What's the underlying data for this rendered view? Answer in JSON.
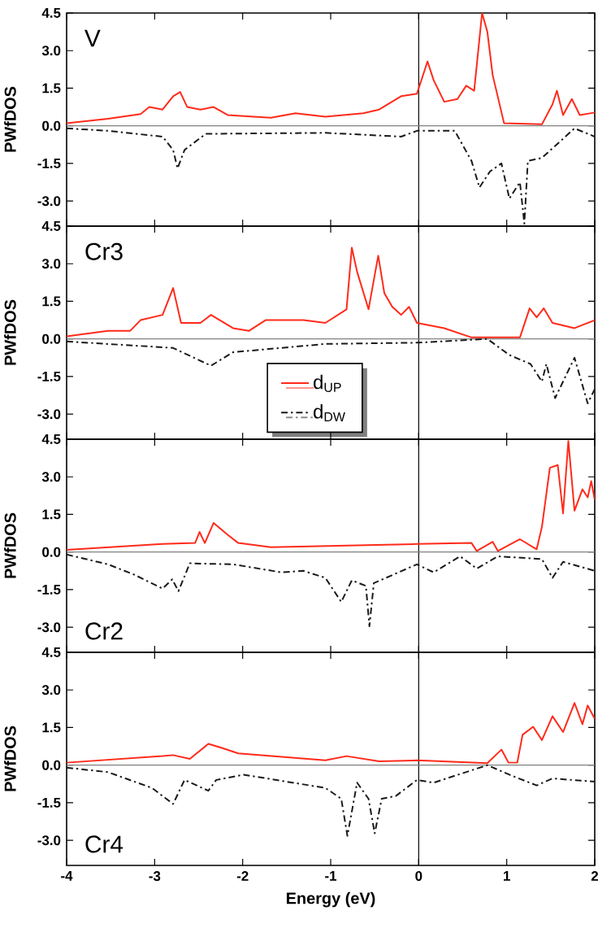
{
  "chart_data": [
    {
      "type": "line",
      "ylabel": "PWfDOS",
      "annotations": [
        "V"
      ],
      "xlim": [
        -4,
        2
      ],
      "ylim": [
        -4,
        4.5
      ],
      "xticks": [
        -4,
        -3,
        -2,
        -1,
        0,
        1,
        2
      ],
      "yticks": [
        {
          "value": -3,
          "label": "-3.0"
        },
        -1.5,
        {
          "value": 0,
          "label": "0.0"
        },
        1.5,
        {
          "value": 3,
          "label": "3.0"
        },
        4.5
      ],
      "tick_labels": "y",
      "ref_lines": [
        {
          "axis": "x",
          "value": 0,
          "color": "#000000"
        },
        {
          "axis": "y",
          "value": 0,
          "color": "#808080"
        }
      ],
      "series": [
        {
          "color": "#ff2a1a",
          "line_style": "solid",
          "x": [
            -4,
            -3.53,
            -3.16,
            -3.06,
            -2.91,
            -2.79,
            -2.71,
            -2.63,
            -2.48,
            -2.33,
            -2.17,
            -1.68,
            -1.4,
            -1.06,
            -0.63,
            -0.45,
            -0.2,
            -0.02,
            0.1,
            0.17,
            0.29,
            0.44,
            0.54,
            0.63,
            0.72,
            0.78,
            0.84,
            0.97,
            1.4,
            1.52,
            1.57,
            1.64,
            1.74,
            1.83,
            2
          ],
          "values": [
            0.1,
            0.28,
            0.47,
            0.75,
            0.65,
            1.18,
            1.35,
            0.75,
            0.65,
            0.75,
            0.43,
            0.32,
            0.5,
            0.36,
            0.5,
            0.65,
            1.18,
            1.28,
            2.57,
            1.82,
            0.96,
            1.07,
            1.6,
            1.4,
            4.5,
            3.75,
            2.03,
            0.1,
            0.06,
            0.86,
            1.4,
            0.43,
            1.07,
            0.43,
            0.53
          ]
        },
        {
          "color": "#1a1a1a",
          "line_style": "dashdot",
          "x": [
            -4,
            -3.53,
            -2.91,
            -2.79,
            -2.74,
            -2.66,
            -2.42,
            -1.06,
            -0.2,
            -0.02,
            0.41,
            0.6,
            0.69,
            0.81,
            0.94,
            1.03,
            1.15,
            1.2,
            1.24,
            1.4,
            1.77,
            2
          ],
          "values": [
            -0.1,
            -0.2,
            -0.43,
            -0.96,
            -1.7,
            -0.96,
            -0.32,
            -0.28,
            -0.43,
            -0.2,
            -0.2,
            -1.4,
            -2.46,
            -1.82,
            -1.5,
            -2.9,
            -2.25,
            -3.9,
            -1.4,
            -1.28,
            -0.1,
            -0.43
          ]
        }
      ]
    },
    {
      "type": "line",
      "ylabel": "PWfDOS",
      "annotations": [
        "Cr3"
      ],
      "xlim": [
        -4,
        2
      ],
      "ylim": [
        -4,
        4.5
      ],
      "xticks": [
        -4,
        -3,
        -2,
        -1,
        0,
        1,
        2
      ],
      "yticks": [
        {
          "value": -3,
          "label": "-3.0"
        },
        -1.5,
        {
          "value": 0,
          "label": "0.0"
        },
        1.5,
        {
          "value": 3,
          "label": "3.0"
        },
        4.5
      ],
      "tick_labels": "y",
      "legend": "bottom",
      "ref_lines": [
        {
          "axis": "x",
          "value": 0,
          "color": "#000000"
        },
        {
          "axis": "y",
          "value": 0,
          "color": "#808080"
        }
      ],
      "series": [
        {
          "name": "d$_{UP}$",
          "color": "#ff2a1a",
          "line_style": "solid",
          "x": [
            -4,
            -3.53,
            -3.28,
            -3.16,
            -2.91,
            -2.79,
            -2.7,
            -2.48,
            -2.36,
            -2.11,
            -1.93,
            -1.74,
            -1.31,
            -1.06,
            -0.82,
            -0.76,
            -0.7,
            -0.57,
            -0.46,
            -0.39,
            -0.3,
            -0.2,
            -0.11,
            -0.02,
            0.29,
            0.6,
            1.15,
            1.26,
            1.34,
            1.42,
            1.52,
            1.77,
            2
          ],
          "values": [
            0.1,
            0.32,
            0.32,
            0.75,
            0.96,
            2.03,
            0.64,
            0.64,
            0.96,
            0.43,
            0.32,
            0.75,
            0.75,
            0.64,
            1.18,
            3.64,
            2.68,
            1.18,
            3.32,
            1.82,
            1.28,
            0.96,
            1.28,
            0.64,
            0.43,
            0.06,
            0.06,
            1.22,
            0.86,
            1.22,
            0.64,
            0.43,
            0.75
          ]
        },
        {
          "name": "d$_{DW}$",
          "color": "#1a1a1a",
          "line_style": "dashdot",
          "x": [
            -4,
            -2.79,
            -2.36,
            -2.11,
            -1.06,
            -0.02,
            0.78,
            1.03,
            1.27,
            1.4,
            1.45,
            1.55,
            1.77,
            1.92,
            2
          ],
          "values": [
            -0.1,
            -0.36,
            -1.07,
            -0.53,
            -0.2,
            -0.15,
            0,
            -0.64,
            -1.0,
            -1.7,
            -1.0,
            -2.36,
            -0.75,
            -2.57,
            -2.0
          ]
        }
      ]
    },
    {
      "type": "line",
      "ylabel": "PWfDOS",
      "annotations": [
        "Cr2"
      ],
      "xlim": [
        -4,
        2
      ],
      "ylim": [
        -4,
        4.5
      ],
      "xticks": [
        -4,
        -3,
        -2,
        -1,
        0,
        1,
        2
      ],
      "yticks": [
        {
          "value": -3,
          "label": "-3.0"
        },
        -1.5,
        {
          "value": 0,
          "label": "0.0"
        },
        1.5,
        {
          "value": 3,
          "label": "3.0"
        },
        4.5
      ],
      "tick_labels": "y",
      "ref_lines": [
        {
          "axis": "x",
          "value": 0,
          "color": "#000000"
        },
        {
          "axis": "y",
          "value": 0,
          "color": "#808080"
        }
      ],
      "series": [
        {
          "color": "#ff2a1a",
          "line_style": "solid",
          "x": [
            -4,
            -2.91,
            -2.54,
            -2.49,
            -2.43,
            -2.33,
            -2.17,
            -2.05,
            -1.68,
            -0.02,
            0.6,
            0.66,
            0.84,
            0.9,
            1.15,
            1.34,
            1.4,
            1.49,
            1.58,
            1.64,
            1.7,
            1.77,
            1.86,
            1.92,
            1.96,
            2
          ],
          "values": [
            0.09,
            0.32,
            0.36,
            0.8,
            0.36,
            1.16,
            0.69,
            0.36,
            0.19,
            0.32,
            0.36,
            0.04,
            0.41,
            0.04,
            0.51,
            0.11,
            1.0,
            3.36,
            3.47,
            1.54,
            4.43,
            1.65,
            2.5,
            2.18,
            2.83,
            2.08
          ]
        },
        {
          "color": "#1a1a1a",
          "line_style": "dashdot",
          "x": [
            -4,
            -3.53,
            -3.22,
            -2.91,
            -2.8,
            -2.73,
            -2.6,
            -2.11,
            -1.56,
            -1.31,
            -1.06,
            -0.88,
            -0.76,
            -0.6,
            -0.56,
            -0.51,
            -0.02,
            0.17,
            0.47,
            0.66,
            0.9,
            1.4,
            1.52,
            1.64,
            2
          ],
          "values": [
            -0.1,
            -0.49,
            -0.92,
            -1.46,
            -1.09,
            -1.56,
            -0.45,
            -0.49,
            -0.81,
            -0.75,
            -1.03,
            -1.99,
            -1.13,
            -1.35,
            -2.96,
            -1.24,
            -0.49,
            -0.81,
            -0.17,
            -0.66,
            -0.17,
            -0.28,
            -1.03,
            -0.39,
            -0.75
          ]
        }
      ]
    },
    {
      "type": "line",
      "ylabel": "PWfDOS",
      "xlabel": "Energy (eV)",
      "annotations": [
        "Cr4"
      ],
      "xlim": [
        -4,
        2
      ],
      "ylim": [
        -4,
        4.5
      ],
      "xticks": [
        -4,
        -3,
        -2,
        -1,
        0,
        1,
        2
      ],
      "yticks": [
        {
          "value": -3,
          "label": "-3.0"
        },
        -1.5,
        {
          "value": 0,
          "label": "0.0"
        },
        1.5,
        {
          "value": 3,
          "label": "3.0"
        },
        4.5
      ],
      "ref_lines": [
        {
          "axis": "x",
          "value": 0,
          "color": "#000000"
        },
        {
          "axis": "y",
          "value": 0,
          "color": "#808080"
        }
      ],
      "series": [
        {
          "color": "#ff2a1a",
          "line_style": "solid",
          "x": [
            -4,
            -2.91,
            -2.79,
            -2.6,
            -2.39,
            -2.23,
            -2.05,
            -1.06,
            -0.82,
            -0.45,
            -0.02,
            0.78,
            0.94,
            1.02,
            1.12,
            1.18,
            1.3,
            1.4,
            1.52,
            1.64,
            1.77,
            1.86,
            1.92,
            2
          ],
          "values": [
            0.1,
            0.36,
            0.4,
            0.25,
            0.85,
            0.68,
            0.47,
            0.19,
            0.36,
            0.15,
            0.19,
            0.08,
            0.62,
            0.1,
            0.1,
            1.21,
            1.53,
            1.0,
            1.95,
            1.32,
            2.48,
            1.63,
            2.38,
            1.85
          ]
        },
        {
          "color": "#1a1a1a",
          "line_style": "dashdot",
          "x": [
            -4,
            -3.53,
            -3.03,
            -2.79,
            -2.66,
            -2.39,
            -2.3,
            -1.99,
            -1.06,
            -0.88,
            -0.81,
            -0.7,
            -0.57,
            -0.5,
            -0.42,
            -0.26,
            -0.02,
            0.17,
            0.78,
            1.03,
            1.34,
            1.52,
            2
          ],
          "values": [
            -0.1,
            -0.28,
            -0.91,
            -1.55,
            -0.59,
            -1.02,
            -0.59,
            -0.38,
            -0.91,
            -1.34,
            -2.82,
            -0.7,
            -1.34,
            -2.72,
            -1.34,
            -1.23,
            -0.59,
            -0.7,
            0,
            -0.38,
            -0.81,
            -0.53,
            -0.66
          ]
        }
      ]
    }
  ]
}
